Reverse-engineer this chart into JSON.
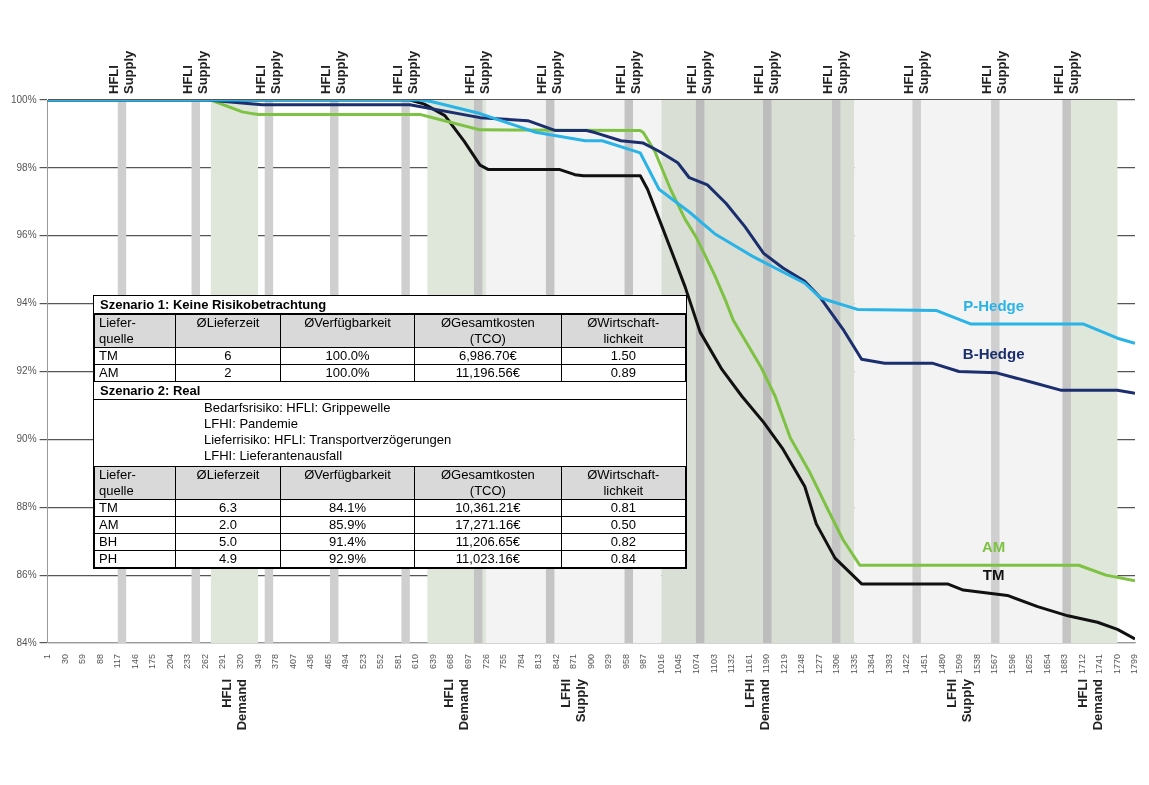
{
  "chart_data": [
    {
      "type": "line",
      "xlim": [
        1,
        1799
      ],
      "xticks": [
        1,
        30,
        59,
        88,
        117,
        146,
        175,
        204,
        233,
        262,
        291,
        320,
        349,
        378,
        407,
        436,
        465,
        494,
        523,
        552,
        581,
        610,
        639,
        668,
        697,
        726,
        755,
        784,
        813,
        842,
        871,
        900,
        929,
        958,
        987,
        1016,
        1045,
        1074,
        1103,
        1132,
        1161,
        1190,
        1219,
        1248,
        1277,
        1306,
        1335,
        1364,
        1393,
        1422,
        1451,
        1480,
        1509,
        1538,
        1567,
        1596,
        1625,
        1654,
        1683,
        1712,
        1741,
        1770,
        1799
      ],
      "ylim": [
        84,
        100
      ],
      "yticks": [
        {
          "value": 84,
          "label": "84%"
        },
        {
          "value": 86,
          "label": "86%"
        },
        {
          "value": 88,
          "label": "88%"
        },
        {
          "value": 90,
          "label": "90%"
        },
        {
          "value": 92,
          "label": "92%"
        },
        {
          "value": 94,
          "label": "94%"
        },
        {
          "value": 96,
          "label": "96%"
        },
        {
          "value": 98,
          "label": "98%"
        },
        {
          "value": 100,
          "label": "100%"
        }
      ],
      "grid": "y",
      "bands": [
        {
          "axis": "x",
          "from": 271,
          "to": 349,
          "label": "HFLI Demand",
          "color": "#dfe6da"
        },
        {
          "axis": "x",
          "from": 629,
          "to": 726,
          "label": "HFLI Demand",
          "color": "#dfe6da"
        },
        {
          "axis": "x",
          "from": 726,
          "to": 1016,
          "label": "LFHI Supply",
          "color": "#f3f3f3"
        },
        {
          "axis": "x",
          "from": 1016,
          "to": 1335,
          "label": "LFHI Demand",
          "color": "#d9dfd5"
        },
        {
          "axis": "x",
          "from": 1335,
          "to": 1683,
          "label": "LFHI Supply",
          "color": "#f3f3f3"
        },
        {
          "axis": "x",
          "from": 1683,
          "to": 1770,
          "label": "HFLI Demand",
          "color": "#dfe6da"
        },
        {
          "axis": "x",
          "from": 117,
          "to": 131,
          "label": "HFLI Supply",
          "color": "#cfcfcf"
        },
        {
          "axis": "x",
          "from": 239,
          "to": 253,
          "label": "HFLI Supply",
          "color": "#cfcfcf"
        },
        {
          "axis": "x",
          "from": 360,
          "to": 374,
          "label": "HFLI Supply",
          "color": "#cfcfcf"
        },
        {
          "axis": "x",
          "from": 468,
          "to": 482,
          "label": "HFLI Supply",
          "color": "#cfcfcf"
        },
        {
          "axis": "x",
          "from": 586,
          "to": 600,
          "label": "HFLI Supply",
          "color": "#cfcfcf"
        },
        {
          "axis": "x",
          "from": 706,
          "to": 720,
          "label": "HFLI Supply",
          "color": "#c4c4c4"
        },
        {
          "axis": "x",
          "from": 825,
          "to": 839,
          "label": "HFLI Supply",
          "color": "#c4c4c4"
        },
        {
          "axis": "x",
          "from": 955,
          "to": 969,
          "label": "HFLI Supply",
          "color": "#c4c4c4"
        },
        {
          "axis": "x",
          "from": 1073,
          "to": 1087,
          "label": "HFLI Supply",
          "color": "#bcbcbc"
        },
        {
          "axis": "x",
          "from": 1184,
          "to": 1198,
          "label": "HFLI Supply",
          "color": "#bcbcbc"
        },
        {
          "axis": "x",
          "from": 1298,
          "to": 1312,
          "label": "HFLI Supply",
          "color": "#c4c4c4"
        },
        {
          "axis": "x",
          "from": 1431,
          "to": 1445,
          "label": "HFLI Supply",
          "color": "#cfcfcf"
        },
        {
          "axis": "x",
          "from": 1561,
          "to": 1575,
          "label": "HFLI Supply",
          "color": "#cfcfcf"
        },
        {
          "axis": "x",
          "from": 1679,
          "to": 1693,
          "label": "HFLI Supply",
          "color": "#c4c4c4"
        }
      ],
      "series": [
        {
          "name": "P-Hedge",
          "color": "#29b3e6",
          "x": [
            1,
            617,
            637,
            716,
            808,
            890,
            918,
            981,
            1012,
            1062,
            1104,
            1166,
            1204,
            1253,
            1279,
            1291,
            1340,
            1470,
            1527,
            1713,
            1770,
            1799
          ],
          "values": [
            100,
            100,
            99.95,
            99.6,
            99.05,
            98.8,
            98.8,
            98.44,
            97.37,
            96.7,
            96.06,
            95.4,
            95.05,
            94.6,
            94.17,
            94.1,
            93.83,
            93.8,
            93.4,
            93.4,
            92.98,
            92.83
          ]
        },
        {
          "name": "B-Hedge",
          "color": "#1b2f6e",
          "x": [
            1,
            266,
            355,
            600,
            716,
            795,
            841,
            892,
            906,
            949,
            986,
            1012,
            1043,
            1062,
            1092,
            1123,
            1154,
            1185,
            1217,
            1253,
            1279,
            1316,
            1347,
            1385,
            1465,
            1508,
            1570,
            1633,
            1676,
            1770,
            1799
          ],
          "values": [
            100,
            100,
            99.86,
            99.86,
            99.48,
            99.39,
            99.1,
            99.1,
            99.04,
            98.8,
            98.73,
            98.49,
            98.15,
            97.71,
            97.5,
            96.95,
            96.27,
            95.48,
            95.05,
            94.66,
            94.17,
            93.25,
            92.36,
            92.24,
            92.24,
            92.0,
            91.96,
            91.66,
            91.45,
            91.45,
            91.36
          ]
        },
        {
          "name": "AM",
          "color": "#7dc242",
          "x": [
            1,
            271,
            323,
            350,
            618,
            651,
            716,
            981,
            986,
            1005,
            1031,
            1055,
            1074,
            1104,
            1123,
            1135,
            1180,
            1204,
            1229,
            1260,
            1291,
            1316,
            1344,
            1706,
            1751,
            1799
          ],
          "values": [
            100,
            100,
            99.65,
            99.57,
            99.57,
            99.42,
            99.12,
            99.1,
            99.04,
            98.49,
            97.37,
            96.49,
            95.94,
            94.84,
            94.05,
            93.5,
            92.15,
            91.27,
            90.05,
            89.07,
            87.94,
            87.05,
            86.29,
            86.29,
            86.0,
            85.83
          ]
        },
        {
          "name": "TM",
          "color": "#111111",
          "x": [
            1,
            600,
            624,
            658,
            690,
            716,
            730,
            848,
            873,
            887,
            981,
            993,
            1017,
            1036,
            1055,
            1080,
            1116,
            1149,
            1185,
            1217,
            1253,
            1272,
            1303,
            1347,
            1489,
            1515,
            1588,
            1638,
            1688,
            1737,
            1770,
            1799
          ],
          "values": [
            100,
            100,
            99.88,
            99.54,
            98.78,
            98.08,
            97.95,
            97.95,
            97.8,
            97.77,
            97.77,
            97.37,
            96.27,
            95.39,
            94.5,
            93.16,
            92.06,
            91.27,
            90.5,
            89.71,
            88.61,
            87.51,
            86.5,
            85.74,
            85.74,
            85.56,
            85.4,
            85.07,
            84.8,
            84.61,
            84.4,
            84.12
          ]
        }
      ]
    },
    {
      "type": "other",
      "title": "Szenario 1: Keine Risikobetrachtung",
      "categories": [
        "Liefer-\nquelle",
        "ØLieferzeit",
        "ØVerfügbarkeit",
        "ØGesamtkosten\n(TCO)",
        "ØWirtschaft-\nlichkeit"
      ],
      "y_categories": [
        "TM",
        "AM"
      ],
      "cell_labels": [
        [
          "6",
          "100.0%",
          "6,986.70€",
          "1.50"
        ],
        [
          "2",
          "100.0%",
          "11,196.56€",
          "0.89"
        ]
      ]
    },
    {
      "type": "other",
      "title": "Szenario 2: Real",
      "annotations": [
        "Bedarfsrisiko: HFLI: Grippewelle",
        "LFHI: Pandemie",
        "Lieferrisiko: HFLI: Transportverzögerungen",
        "LFHI: Lieferantenausfall"
      ],
      "categories": [
        "Liefer-\nquelle",
        "ØLieferzeit",
        "ØVerfügbarkeit",
        "ØGesamtkosten\n(TCO)",
        "ØWirtschaft-\nlichkeit"
      ],
      "y_categories": [
        "TM",
        "AM",
        "BH",
        "PH"
      ],
      "cell_labels": [
        [
          "6.3",
          "84.1%",
          "10,361.21€",
          "0.81"
        ],
        [
          "2.0",
          "85.9%",
          "17,271.16€",
          "0.50"
        ],
        [
          "5.0",
          "91.4%",
          "11,206.65€",
          "0.82"
        ],
        [
          "4.9",
          "92.9%",
          "11,023.16€",
          "0.84"
        ]
      ]
    }
  ]
}
